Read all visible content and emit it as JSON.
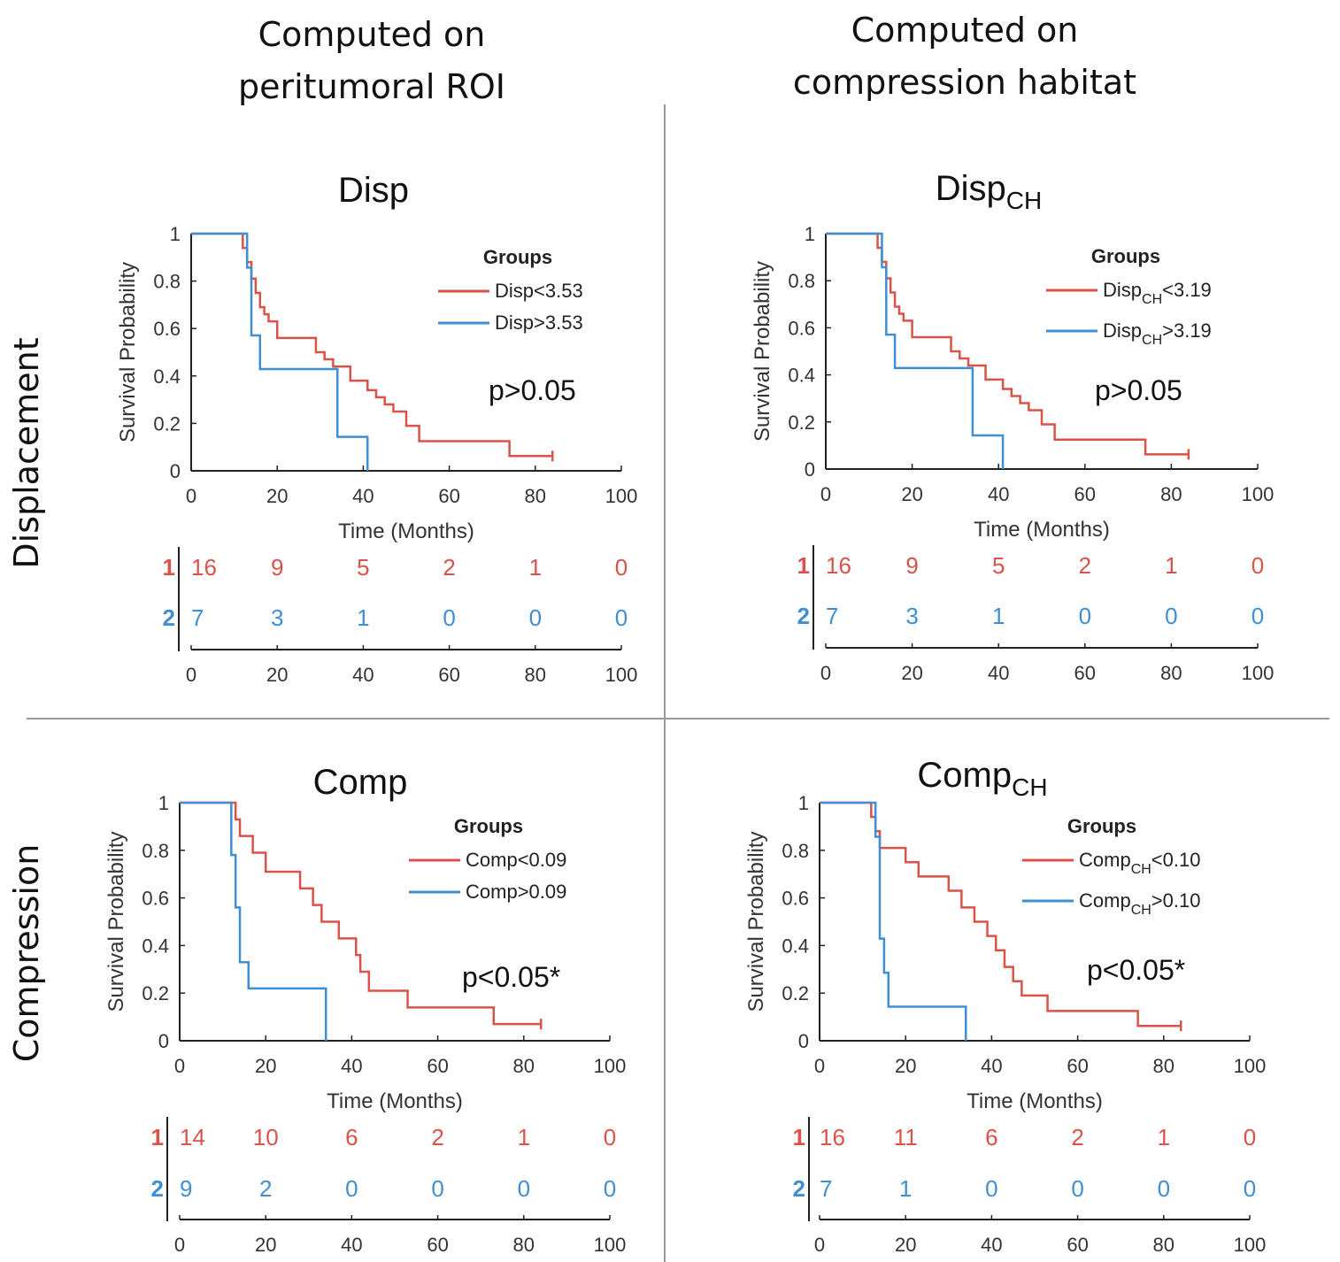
{
  "column_titles": [
    {
      "line1": "Computed on",
      "line2": "peritumoral ROI"
    },
    {
      "line1": "Computed on",
      "line2": "compression habitat"
    }
  ],
  "row_labels": [
    "Displacement",
    "Compression"
  ],
  "colors": {
    "group1": "#d9534a",
    "group2": "#3f8fd2",
    "axis": "#222222",
    "divider": "#9a9a9a"
  },
  "chart_data": [
    {
      "type": "line",
      "title": "Disp",
      "title_sub": "",
      "xlabel": "Time (Months)",
      "ylabel": "Survival Probability",
      "xlim": [
        0,
        100
      ],
      "ylim": [
        0,
        1
      ],
      "xticks": [
        "0",
        "20",
        "40",
        "60",
        "80",
        "100"
      ],
      "yticks": [
        "0",
        "0.2",
        "0.4",
        "0.6",
        "0.8",
        "1"
      ],
      "legend_title": "Groups",
      "legend_position": "top-right",
      "p_value": "p>0.05",
      "series": [
        {
          "name": "Disp<3.53",
          "name_base": "Disp",
          "name_sub": "",
          "name_rest": "<3.53",
          "x": [
            0,
            11,
            12,
            13,
            14,
            15,
            16,
            17,
            18,
            20,
            27,
            29,
            31,
            33,
            37,
            39,
            41,
            43,
            45,
            47,
            50,
            53,
            58,
            74,
            84
          ],
          "y": [
            1,
            1,
            0.94,
            0.88,
            0.81,
            0.75,
            0.69,
            0.66,
            0.63,
            0.56,
            0.56,
            0.5,
            0.47,
            0.44,
            0.38,
            0.38,
            0.34,
            0.31,
            0.28,
            0.25,
            0.19,
            0.125,
            0.125,
            0.0625,
            0.0625
          ]
        },
        {
          "name": "Disp>3.53",
          "name_base": "Disp",
          "name_sub": "",
          "name_rest": ">3.53",
          "x": [
            0,
            10,
            13,
            14,
            16,
            33,
            34,
            41
          ],
          "y": [
            1,
            1,
            0.857,
            0.571,
            0.429,
            0.429,
            0.143,
            0
          ]
        }
      ],
      "risk_table": {
        "times": [
          "0",
          "20",
          "40",
          "60",
          "80",
          "100"
        ],
        "rows": [
          {
            "label": "1",
            "values": [
              "16",
              "9",
              "5",
              "2",
              "1",
              "0"
            ]
          },
          {
            "label": "2",
            "values": [
              "7",
              "3",
              "1",
              "0",
              "0",
              "0"
            ]
          }
        ]
      }
    },
    {
      "type": "line",
      "title": "Disp",
      "title_sub": "CH",
      "xlabel": "Time (Months)",
      "ylabel": "Survival Probability",
      "xlim": [
        0,
        100
      ],
      "ylim": [
        0,
        1
      ],
      "xticks": [
        "0",
        "20",
        "40",
        "60",
        "80",
        "100"
      ],
      "yticks": [
        "0",
        "0.2",
        "0.4",
        "0.6",
        "0.8",
        "1"
      ],
      "legend_title": "Groups",
      "legend_position": "top-right",
      "p_value": "p>0.05",
      "series": [
        {
          "name": "DispCH<3.19",
          "name_base": "Disp",
          "name_sub": "CH",
          "name_rest": "<3.19",
          "x": [
            0,
            11,
            12,
            13,
            14,
            15,
            16,
            17,
            18,
            20,
            27,
            29,
            31,
            33,
            37,
            39,
            41,
            43,
            45,
            47,
            50,
            53,
            58,
            74,
            84
          ],
          "y": [
            1,
            1,
            0.94,
            0.88,
            0.81,
            0.75,
            0.69,
            0.66,
            0.63,
            0.56,
            0.56,
            0.5,
            0.47,
            0.44,
            0.38,
            0.38,
            0.34,
            0.31,
            0.28,
            0.25,
            0.19,
            0.125,
            0.125,
            0.0625,
            0.0625
          ]
        },
        {
          "name": "DispCH>3.19",
          "name_base": "Disp",
          "name_sub": "CH",
          "name_rest": ">3.19",
          "x": [
            0,
            10,
            13,
            14,
            16,
            33,
            34,
            41
          ],
          "y": [
            1,
            1,
            0.857,
            0.571,
            0.429,
            0.429,
            0.143,
            0
          ]
        }
      ],
      "risk_table": {
        "times": [
          "0",
          "20",
          "40",
          "60",
          "80",
          "100"
        ],
        "rows": [
          {
            "label": "1",
            "values": [
              "16",
              "9",
              "5",
              "2",
              "1",
              "0"
            ]
          },
          {
            "label": "2",
            "values": [
              "7",
              "3",
              "1",
              "0",
              "0",
              "0"
            ]
          }
        ]
      }
    },
    {
      "type": "line",
      "title": "Comp",
      "title_sub": "",
      "xlabel": "Time (Months)",
      "ylabel": "Survival Probability",
      "xlim": [
        0,
        100
      ],
      "ylim": [
        0,
        1
      ],
      "xticks": [
        "0",
        "20",
        "40",
        "60",
        "80",
        "100"
      ],
      "yticks": [
        "0",
        "0.2",
        "0.4",
        "0.6",
        "0.8",
        "1"
      ],
      "legend_title": "Groups",
      "legend_position": "top-right",
      "p_value": "p<0.05*",
      "series": [
        {
          "name": "Comp<0.09",
          "name_base": "Comp",
          "name_sub": "",
          "name_rest": "<0.09",
          "x": [
            0,
            12,
            13,
            14,
            17,
            20,
            25,
            28,
            31,
            33,
            35,
            37,
            41,
            42,
            44,
            46,
            53,
            58,
            73,
            84
          ],
          "y": [
            1,
            1,
            0.93,
            0.86,
            0.79,
            0.71,
            0.71,
            0.64,
            0.57,
            0.5,
            0.5,
            0.43,
            0.36,
            0.29,
            0.21,
            0.21,
            0.14,
            0.14,
            0.07,
            0.07
          ]
        },
        {
          "name": "Comp>0.09",
          "name_base": "Comp",
          "name_sub": "",
          "name_rest": ">0.09",
          "x": [
            0,
            10,
            12,
            13,
            14,
            16,
            34
          ],
          "y": [
            1,
            1,
            0.78,
            0.56,
            0.33,
            0.22,
            0
          ]
        }
      ],
      "risk_table": {
        "times": [
          "0",
          "20",
          "40",
          "60",
          "80",
          "100"
        ],
        "rows": [
          {
            "label": "1",
            "values": [
              "14",
              "10",
              "6",
              "2",
              "1",
              "0"
            ]
          },
          {
            "label": "2",
            "values": [
              "9",
              "2",
              "0",
              "0",
              "0",
              "0"
            ]
          }
        ]
      }
    },
    {
      "type": "line",
      "title": "Comp",
      "title_sub": "CH",
      "xlabel": "Time (Months)",
      "ylabel": "Survival Probability",
      "xlim": [
        0,
        100
      ],
      "ylim": [
        0,
        1
      ],
      "xticks": [
        "0",
        "20",
        "40",
        "60",
        "80",
        "100"
      ],
      "yticks": [
        "0",
        "0.2",
        "0.4",
        "0.6",
        "0.8",
        "1"
      ],
      "legend_title": "Groups",
      "legend_position": "top-right",
      "p_value": "p<0.05*",
      "series": [
        {
          "name": "CompCH<0.10",
          "name_base": "Comp",
          "name_sub": "CH",
          "name_rest": "<0.10",
          "x": [
            0,
            11,
            12,
            13,
            14,
            17,
            20,
            23,
            28,
            30,
            33,
            36,
            39,
            41,
            43,
            45,
            47,
            50,
            53,
            58,
            74,
            84
          ],
          "y": [
            1,
            1,
            0.94,
            0.88,
            0.81,
            0.81,
            0.75,
            0.69,
            0.69,
            0.63,
            0.56,
            0.5,
            0.44,
            0.38,
            0.31,
            0.25,
            0.19,
            0.19,
            0.125,
            0.125,
            0.0625,
            0.0625
          ]
        },
        {
          "name": "CompCH>0.10",
          "name_base": "Comp",
          "name_sub": "CH",
          "name_rest": ">0.10",
          "x": [
            0,
            10,
            13,
            14,
            15,
            16,
            34
          ],
          "y": [
            1,
            1,
            0.857,
            0.429,
            0.286,
            0.143,
            0
          ]
        }
      ],
      "risk_table": {
        "times": [
          "0",
          "20",
          "40",
          "60",
          "80",
          "100"
        ],
        "rows": [
          {
            "label": "1",
            "values": [
              "16",
              "11",
              "6",
              "2",
              "1",
              "0"
            ]
          },
          {
            "label": "2",
            "values": [
              "7",
              "1",
              "0",
              "0",
              "0",
              "0"
            ]
          }
        ]
      }
    }
  ]
}
